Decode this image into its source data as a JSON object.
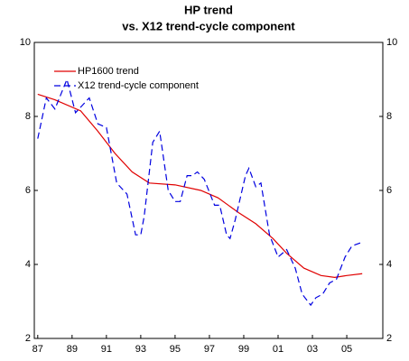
{
  "chart_data": {
    "type": "line",
    "title": "HP trend",
    "subtitle": "vs. X12 trend-cycle component",
    "series": [
      {
        "name": "HP1600 trend",
        "color": "#e00000",
        "dash": false,
        "x": [
          1987,
          1988,
          1989.5,
          1990.5,
          1991.5,
          1992.5,
          1993.5,
          1995,
          1996.5,
          1997.5,
          1998.7,
          1999.7,
          2000.7,
          2001.5,
          2002.5,
          2003.5,
          2004.3,
          2005,
          2005.9
        ],
        "values": [
          8.6,
          8.45,
          8.15,
          7.6,
          7.0,
          6.5,
          6.2,
          6.15,
          6.0,
          5.8,
          5.4,
          5.1,
          4.7,
          4.3,
          3.9,
          3.7,
          3.65,
          3.7,
          3.75
        ]
      },
      {
        "name": "X12 trend-cycle component",
        "color": "#0000e0",
        "dash": true,
        "x": [
          1987,
          1987.5,
          1988,
          1988.7,
          1989.2,
          1990,
          1990.5,
          1991,
          1991.6,
          1992.2,
          1992.7,
          1993,
          1993.2,
          1993.7,
          1994.1,
          1994.6,
          1995,
          1995.3,
          1995.7,
          1996,
          1996.3,
          1996.7,
          1997.3,
          1997.6,
          1998,
          1998.2,
          1998.5,
          1999.1,
          1999.3,
          1999.7,
          2000,
          2000.5,
          2001,
          2001.5,
          2002,
          2002.4,
          2002.9,
          2003.2,
          2003.6,
          2004,
          2004.4,
          2004.9,
          2005.3,
          2005.9
        ],
        "values": [
          7.4,
          8.5,
          8.2,
          9.0,
          8.1,
          8.5,
          7.8,
          7.7,
          6.2,
          5.9,
          4.8,
          4.8,
          5.3,
          7.3,
          7.6,
          6.0,
          5.7,
          5.7,
          6.4,
          6.4,
          6.5,
          6.3,
          5.6,
          5.6,
          4.8,
          4.7,
          5.2,
          6.4,
          6.6,
          6.1,
          6.2,
          4.8,
          4.2,
          4.4,
          3.9,
          3.2,
          2.9,
          3.1,
          3.2,
          3.5,
          3.6,
          4.2,
          4.5,
          4.6
        ]
      }
    ],
    "xlim": [
      1986.8,
      2007.1
    ],
    "xticks": [
      {
        "value": 1987,
        "label": "87"
      },
      {
        "value": 1989,
        "label": "89"
      },
      {
        "value": 1991,
        "label": "91"
      },
      {
        "value": 1993,
        "label": "93"
      },
      {
        "value": 1995,
        "label": "95"
      },
      {
        "value": 1997,
        "label": "97"
      },
      {
        "value": 1999,
        "label": "99"
      },
      {
        "value": 2001,
        "label": "01"
      },
      {
        "value": 2003,
        "label": "03"
      },
      {
        "value": 2005,
        "label": "05"
      }
    ],
    "ylim": [
      2,
      10
    ],
    "yticks": [
      2,
      4,
      6,
      8,
      10
    ],
    "y2lim": [
      2,
      10
    ],
    "y2ticks": [
      2,
      4,
      6,
      8,
      10
    ],
    "grid": false,
    "legend": "top-left"
  }
}
